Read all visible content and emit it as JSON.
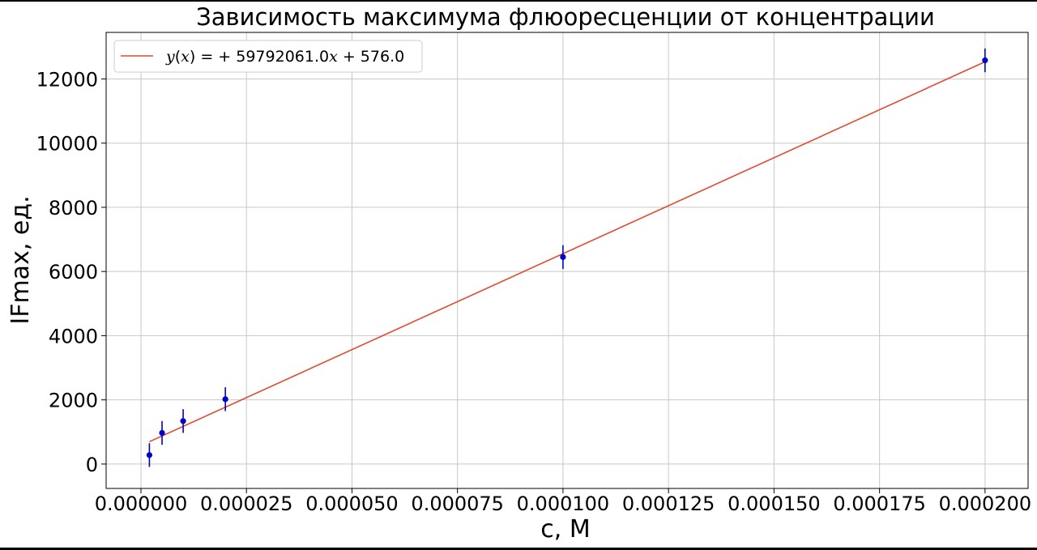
{
  "chart_data": {
    "type": "scatter",
    "title": "Зависимость максимума флюоресценции от концентрации",
    "xlabel": "c, M",
    "ylabel": "IFmax, ед.",
    "xlim": [
      -8.25e-06,
      0.0002102
    ],
    "ylim": [
      -760,
      13450
    ],
    "grid": true,
    "legend_position": "top-left",
    "x_ticks": [
      0,
      2.5e-05,
      5e-05,
      7.5e-05,
      0.0001,
      0.000125,
      0.00015,
      0.000175,
      0.0002
    ],
    "x_tick_labels": [
      "0.000000",
      "0.000025",
      "0.000050",
      "0.000075",
      "0.000100",
      "0.000125",
      "0.000150",
      "0.000175",
      "0.000200"
    ],
    "y_ticks": [
      0,
      2000,
      4000,
      6000,
      8000,
      10000,
      12000
    ],
    "y_tick_labels": [
      "0",
      "2000",
      "4000",
      "6000",
      "8000",
      "10000",
      "12000"
    ],
    "series": [
      {
        "kind": "points_with_errorbars",
        "color": "#0000cc",
        "x": [
          2e-06,
          5e-06,
          1e-05,
          2e-05,
          0.0001,
          0.0002
        ],
        "y": [
          280,
          970,
          1340,
          2020,
          6450,
          12580
        ],
        "yerr": [
          370,
          370,
          370,
          370,
          370,
          370
        ]
      },
      {
        "kind": "fit_line",
        "name": "y(x) = + 59792061.0x + 576.0",
        "color": "#e04a2e",
        "slope": 59792061.0,
        "intercept": 576.0,
        "x_range": [
          2e-06,
          0.0002
        ]
      }
    ],
    "legend": {
      "label_prefix": "y(x) = ",
      "label_formula": "+ 59792061.0x + 576.0"
    }
  }
}
